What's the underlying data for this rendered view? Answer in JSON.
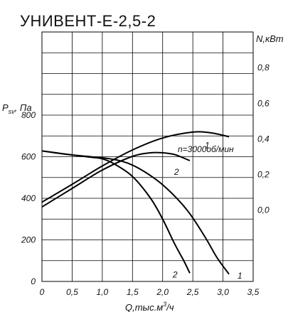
{
  "chart_data": {
    "type": "line",
    "title": "УНИВЕНТ-Е-2,5-2",
    "annotation": "n=3000об/мин",
    "x_axis": {
      "label_prefix": "Q,тыс.м",
      "label_sup": "3",
      "label_suffix": "/ч",
      "range": [
        0,
        3.5
      ],
      "ticks": [
        "0",
        "0,5",
        "1,0",
        "1,5",
        "2,0",
        "2,5",
        "3,0",
        "3,5"
      ]
    },
    "left_axis": {
      "label_main": "P",
      "label_sub": "sv",
      "label_suffix": ", Па",
      "range": [
        0,
        1200
      ],
      "ticks": [
        "0",
        "200",
        "400",
        "600",
        "800"
      ]
    },
    "right_axis": {
      "label": "N,кВт",
      "range": [
        -0.4,
        1.0
      ],
      "ticks": [
        "0,0",
        "0,2",
        "0,4",
        "0,6",
        "0,8"
      ]
    },
    "grid": true,
    "series": [
      {
        "name": "1",
        "axis": "left",
        "x": [
          0,
          0.4,
          0.8,
          1.0,
          1.3,
          1.6,
          2.0,
          2.4,
          2.7,
          2.9,
          3.1
        ],
        "values": [
          628,
          612,
          600,
          595,
          580,
          545,
          465,
          345,
          215,
          115,
          35
        ]
      },
      {
        "name": "2",
        "axis": "left",
        "x": [
          0,
          0.4,
          0.8,
          1.0,
          1.2,
          1.5,
          1.8,
          2.0,
          2.2,
          2.35,
          2.45
        ],
        "values": [
          628,
          612,
          598,
          590,
          565,
          505,
          400,
          300,
          180,
          100,
          40
        ]
      },
      {
        "name": "1",
        "axis": "right",
        "x": [
          0,
          0.5,
          1.0,
          1.5,
          2.0,
          2.5,
          2.8,
          3.1
        ],
        "values": [
          0.045,
          0.145,
          0.248,
          0.338,
          0.405,
          0.438,
          0.434,
          0.412
        ]
      },
      {
        "name": "2",
        "axis": "right",
        "x": [
          0,
          0.5,
          1.0,
          1.5,
          1.8,
          2.0,
          2.2,
          2.45
        ],
        "values": [
          0.018,
          0.122,
          0.225,
          0.302,
          0.322,
          0.322,
          0.312,
          0.278
        ]
      }
    ]
  }
}
